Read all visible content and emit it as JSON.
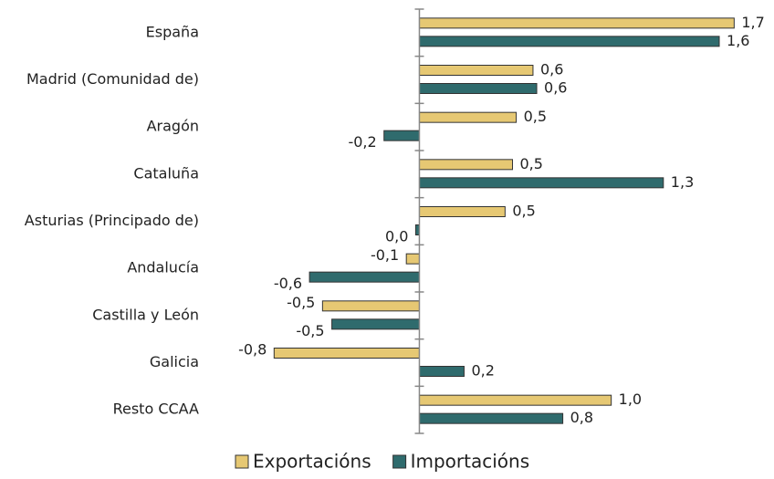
{
  "chart_data": {
    "type": "barh",
    "categories": [
      "España",
      "Madrid (Comunidad de)",
      "Aragón",
      "Cataluña",
      "Asturias (Principado de)",
      "Andalucía",
      "Castilla y León",
      "Galicia",
      "Resto CCAA"
    ],
    "series": [
      {
        "name": "Exportacións",
        "color": "#e6c873",
        "values": [
          1.69,
          0.61,
          0.52,
          0.5,
          0.46,
          -0.07,
          -0.52,
          -0.78,
          1.03
        ],
        "value_labels": [
          "1,7",
          "0,6",
          "0,5",
          "0,5",
          "0,5",
          "-0,1",
          "-0,5",
          "-0,8",
          "1,0"
        ]
      },
      {
        "name": "Importacións",
        "color": "#2f6b6d",
        "values": [
          1.61,
          0.63,
          -0.19,
          1.31,
          -0.02,
          -0.59,
          -0.47,
          0.24,
          0.77
        ],
        "value_labels": [
          "1,6",
          "0,6",
          "-0,2",
          "1,3",
          "0,0",
          "-0,6",
          "-0,5",
          "0,2",
          "0,8"
        ]
      }
    ],
    "xlim": [
      -1.1,
      1.85
    ],
    "legend": "bottom"
  }
}
